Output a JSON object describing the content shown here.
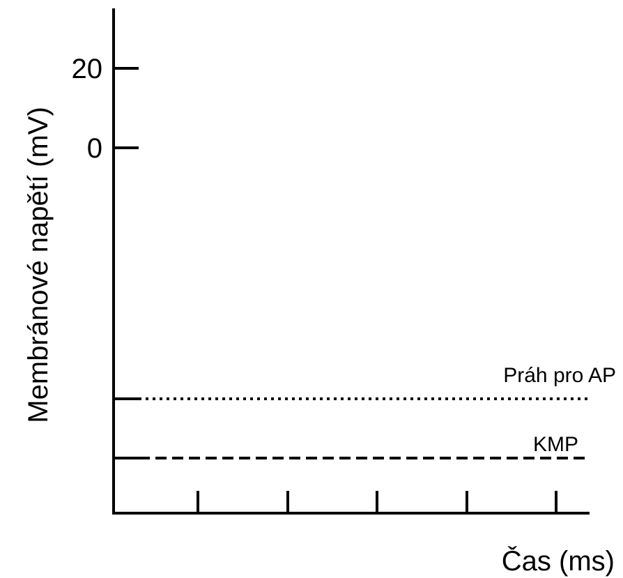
{
  "chart_data": {
    "type": "line",
    "title": "",
    "xlabel": "Čas (ms)",
    "ylabel": "Membránové napětí (mV)",
    "ylim": [
      -90,
      30
    ],
    "y_ticks": [
      {
        "value": 20,
        "label": "20"
      },
      {
        "value": 0,
        "label": "0"
      }
    ],
    "x_tick_count": 5,
    "reference_lines": [
      {
        "name": "Práh pro AP",
        "value": -55,
        "style": "dotted"
      },
      {
        "name": "KMP",
        "value": -70,
        "style": "dashed"
      }
    ],
    "grid": false,
    "colors": {
      "axis": "#000000",
      "background": "#ffffff"
    }
  }
}
